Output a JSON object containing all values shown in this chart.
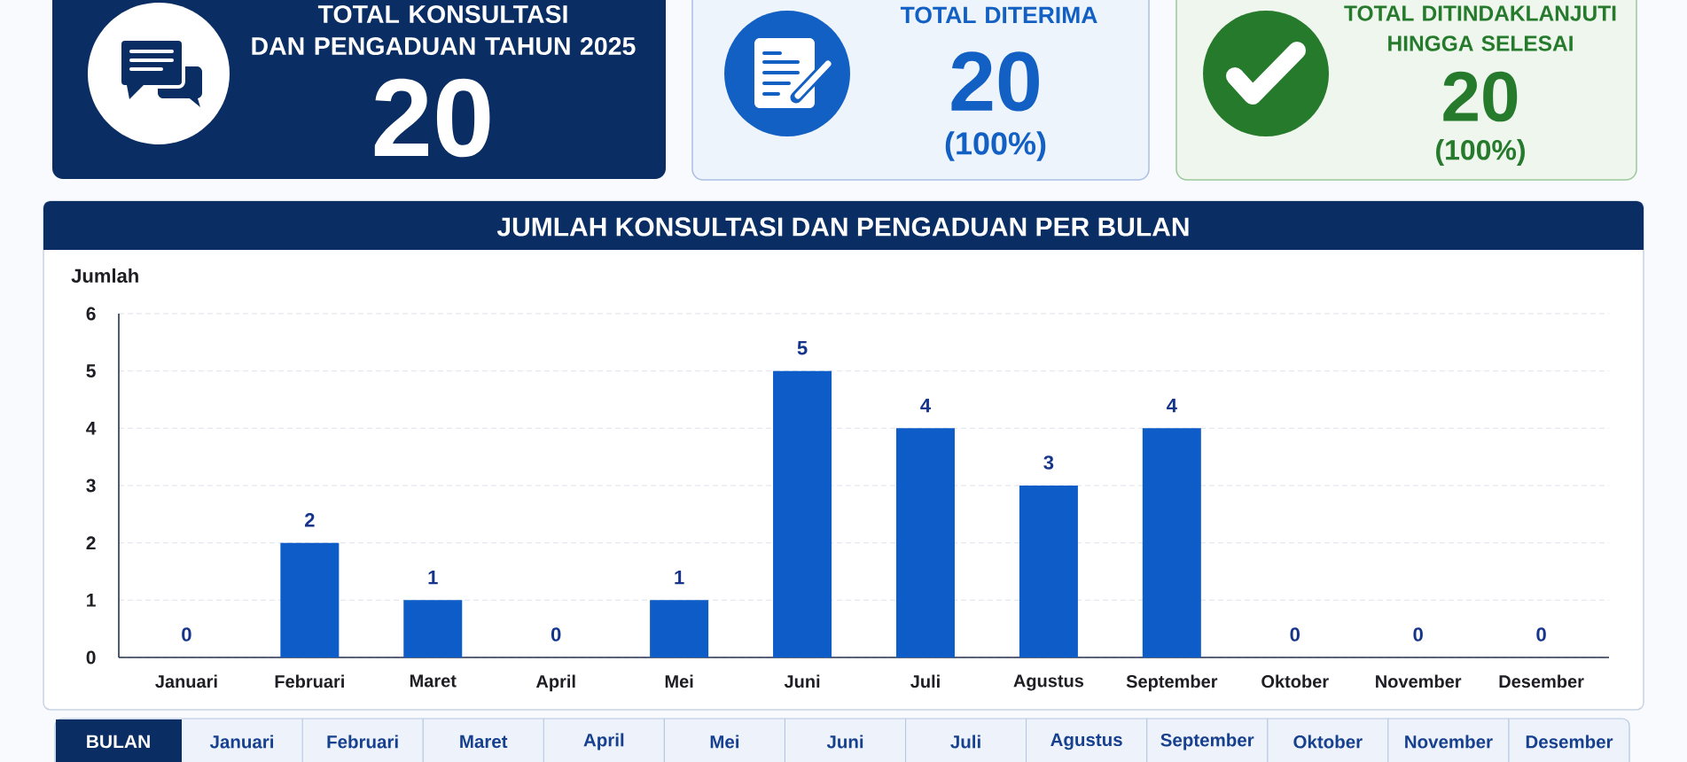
{
  "chart_data": [
    {
      "type": "other",
      "title": "TOTAL KONSULTASI\nDAN PENGADUAN TAHUN 2025",
      "values": [
        20
      ],
      "data_labels": true
    },
    {
      "type": "other",
      "title": "TOTAL DITERIMA",
      "values": [
        20,
        100
      ],
      "value_labels": [
        "20",
        "(100%)"
      ]
    },
    {
      "type": "other",
      "title": "TOTAL DITINDAKLANJUTI\nHINGGA SELESAI",
      "values": [
        20,
        100
      ],
      "value_labels": [
        "20",
        "(100%)"
      ]
    },
    {
      "type": "bar",
      "title": "JUMLAH KONSULTASI DAN PENGADUAN PER BULAN",
      "ylabel": "Jumlah",
      "categories": [
        "Januari",
        "Februari",
        "Maret",
        "April",
        "Mei",
        "Juni",
        "Juli",
        "Agustus",
        "September",
        "Oktober",
        "November",
        "Desember"
      ],
      "values": [
        0,
        2,
        1,
        0,
        1,
        5,
        4,
        3,
        4,
        0,
        0,
        0
      ],
      "color": "#0d5cc7",
      "ylim": [
        0,
        6
      ],
      "yticks": [
        0,
        1,
        2,
        3,
        4,
        5,
        6
      ],
      "grid": "y",
      "data_labels": true
    },
    {
      "type": "other",
      "title": "BULAN",
      "categories": [
        "Januari",
        "Februari",
        "Maret",
        "April",
        "Mei",
        "Juni",
        "Juli",
        "Agustus",
        "September",
        "Oktober",
        "November",
        "Desember"
      ]
    }
  ]
}
